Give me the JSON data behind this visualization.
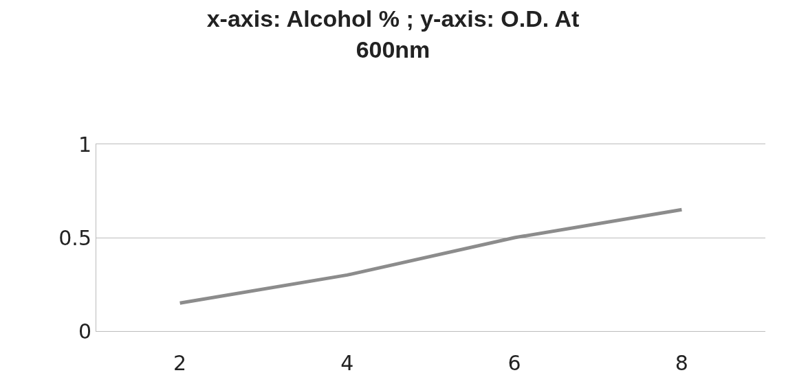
{
  "chart_data": {
    "type": "line",
    "title": "x-axis: Alcohol % ; y-axis: O.D. At 600nm",
    "categories": [
      "2",
      "4",
      "6",
      "8"
    ],
    "series": [
      {
        "color": "#8c8c8c",
        "values": [
          0.15,
          0.3,
          0.5,
          0.65
        ]
      }
    ],
    "ylim": [
      0,
      1
    ],
    "yticks": [
      0,
      0.5,
      1
    ],
    "grid": "y",
    "marker": "none",
    "line_style": "solid"
  }
}
